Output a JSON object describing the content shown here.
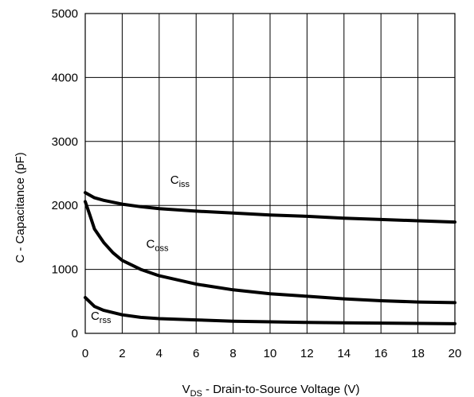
{
  "chart_data": {
    "type": "line",
    "title": "",
    "xlabel": {
      "main": "V",
      "sub": "DS",
      "rest": " - Drain-to-Source Voltage (V)"
    },
    "ylabel": "C - Capacitance (pF)",
    "xlim": [
      0,
      20
    ],
    "ylim": [
      0,
      5000
    ],
    "xticks": [
      0,
      2,
      4,
      6,
      8,
      10,
      12,
      14,
      16,
      18,
      20
    ],
    "yticks": [
      0,
      1000,
      2000,
      3000,
      4000,
      5000
    ],
    "grid": true,
    "legend": "none",
    "series": [
      {
        "name": "Ciss",
        "label_main": "C",
        "label_sub": "iss",
        "x": [
          0,
          0.5,
          1,
          2,
          3,
          4,
          6,
          8,
          10,
          12,
          14,
          16,
          18,
          20
        ],
        "y": [
          2200,
          2120,
          2080,
          2020,
          1980,
          1950,
          1910,
          1880,
          1850,
          1830,
          1800,
          1780,
          1760,
          1740
        ]
      },
      {
        "name": "Coss",
        "label_main": "C",
        "label_sub": "oss",
        "x": [
          0,
          0.25,
          0.5,
          1,
          1.5,
          2,
          3,
          4,
          6,
          8,
          10,
          12,
          14,
          16,
          18,
          20
        ],
        "y": [
          2060,
          1850,
          1630,
          1420,
          1260,
          1140,
          1000,
          900,
          770,
          680,
          620,
          580,
          540,
          510,
          490,
          480
        ]
      },
      {
        "name": "Crss",
        "label_main": "C",
        "label_sub": "rss",
        "x": [
          0,
          0.5,
          1,
          2,
          3,
          4,
          6,
          8,
          10,
          12,
          14,
          16,
          18,
          20
        ],
        "y": [
          560,
          420,
          360,
          290,
          250,
          230,
          210,
          190,
          180,
          170,
          165,
          160,
          155,
          150
        ]
      }
    ],
    "line_color": "#000000"
  }
}
